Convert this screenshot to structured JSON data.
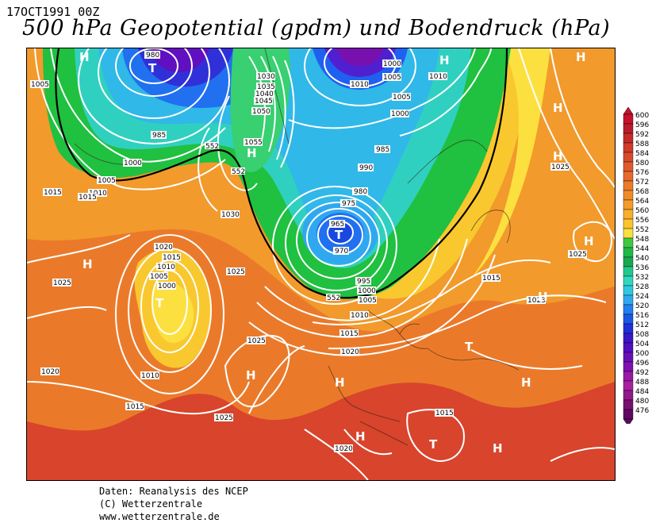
{
  "header": {
    "date": "17OCT1991 00Z",
    "title": "500 hPa Geopotential (gpdm) und Bodendruck (hPa)"
  },
  "credits": {
    "line1": "Daten: Reanalysis des NCEP",
    "line2": "(C) Wetterzentrale",
    "line3": "www.wetterzentrale.de"
  },
  "colorbar": {
    "levels": [
      "600",
      "596",
      "592",
      "588",
      "584",
      "580",
      "576",
      "572",
      "568",
      "564",
      "560",
      "556",
      "552",
      "548",
      "544",
      "540",
      "536",
      "532",
      "528",
      "524",
      "520",
      "516",
      "512",
      "508",
      "504",
      "500",
      "496",
      "492",
      "488",
      "484",
      "480",
      "476"
    ],
    "colors": [
      "#c8102e",
      "#b81c2c",
      "#c42a28",
      "#d03a28",
      "#d84a2c",
      "#e05a2e",
      "#e66a2c",
      "#ec7c2a",
      "#f08c28",
      "#f49c2a",
      "#f8b02c",
      "#fcc42e",
      "#f8e040",
      "#40c840",
      "#20b848",
      "#18a850",
      "#20c890",
      "#30d8c0",
      "#30c8e0",
      "#30a8f0",
      "#2080f0",
      "#1858e8",
      "#2030d8",
      "#3818c8",
      "#5010c0",
      "#6810b8",
      "#8010b0",
      "#9818a8",
      "#a820a0",
      "#901888",
      "#781070",
      "#600860"
    ]
  },
  "isobar_labels": [
    "980",
    "985",
    "1000",
    "1005",
    "1010",
    "1015",
    "1025",
    "1030",
    "1035",
    "1040",
    "1045",
    "1050",
    "1055",
    "1000",
    "1005",
    "1010",
    "985",
    "990",
    "975",
    "965",
    "970",
    "980",
    "1020",
    "1005",
    "1000",
    "1010",
    "1015",
    "1020",
    "1025",
    "1025",
    "1015",
    "1015",
    "1023",
    "1025",
    "1030",
    "1020",
    "1010",
    "1015",
    "1005",
    "995",
    "1000",
    "1010",
    "1015",
    "1020",
    "1025",
    "1010",
    "1005",
    "1000",
    "552",
    "552",
    "552",
    "1015",
    "1025",
    "1005"
  ],
  "pressure_centers": [
    {
      "letter": "H"
    },
    {
      "letter": "T"
    },
    {
      "letter": "H"
    },
    {
      "letter": "H"
    },
    {
      "letter": "H"
    },
    {
      "letter": "H"
    },
    {
      "letter": "T"
    },
    {
      "letter": "H"
    },
    {
      "letter": "H"
    },
    {
      "letter": "T"
    },
    {
      "letter": "H"
    },
    {
      "letter": "H"
    },
    {
      "letter": "H"
    },
    {
      "letter": "H"
    },
    {
      "letter": "T"
    },
    {
      "letter": "H"
    },
    {
      "letter": "T"
    },
    {
      "letter": "H"
    },
    {
      "letter": "H"
    }
  ]
}
